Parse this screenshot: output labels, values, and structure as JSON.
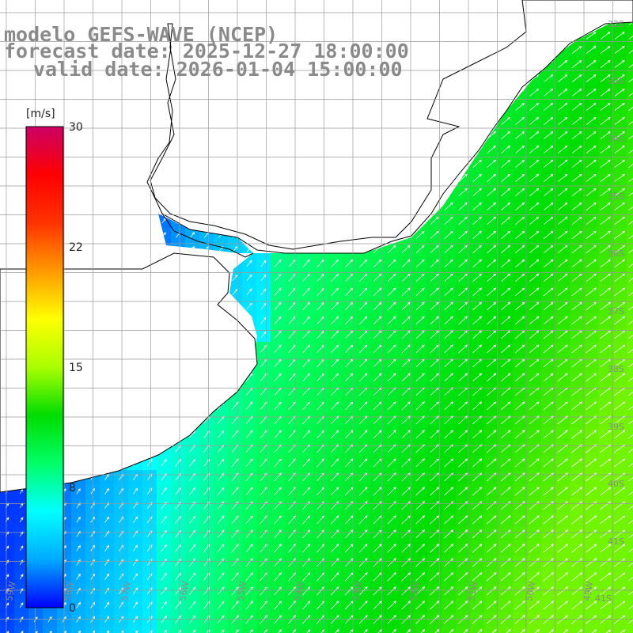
{
  "header": {
    "line1": "modelo GEFS-WAVE (NCEP)",
    "line2": "forecast date: 2025-12-27 18:00:00",
    "line3": "valid date: 2026-01-04 15:00:00"
  },
  "colorbar": {
    "unit": "[m/s]",
    "ticks": [
      "30",
      "22",
      "15",
      "8",
      "0"
    ],
    "min": 0,
    "max": 30,
    "colors": [
      "#0000ff",
      "#00aaff",
      "#00ffff",
      "#00ff66",
      "#00dd00",
      "#aaff00",
      "#ffff00",
      "#ff9900",
      "#ff3300",
      "#ff0000",
      "#cc0066"
    ]
  },
  "map": {
    "lat_labels": [
      "32S",
      "33S",
      "34S",
      "35S",
      "36S",
      "37S",
      "38S",
      "39S",
      "40S",
      "41S"
    ],
    "lon_labels": [
      "59W",
      "58W",
      "57W",
      "56W",
      "55W",
      "54W",
      "53W",
      "52W",
      "51W",
      "50W",
      "49W"
    ],
    "land_color": "#ffffff",
    "coast_color": "#000000",
    "grid_color": "#9a9a9a",
    "arrow_color": "#ffffff"
  }
}
